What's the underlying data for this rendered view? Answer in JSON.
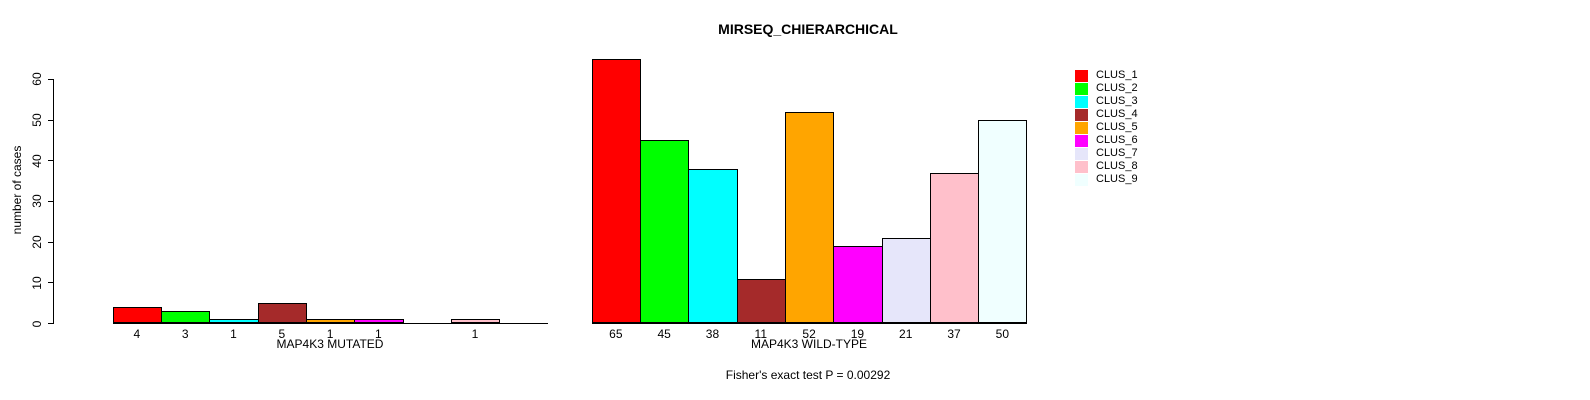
{
  "title": "MIRSEQ_CHIERARCHICAL",
  "footnote": "Fisher's exact test P = 0.00292",
  "ylabel": "number of cases",
  "palette": [
    "#FF0000",
    "#00FF00",
    "#00FFFF",
    "#A52A2A",
    "#FFA500",
    "#FF00FF",
    "#E6E6FA",
    "#FFC0CB",
    "#F0FFFF"
  ],
  "legend": {
    "items": [
      {
        "label": "CLUS_1",
        "color": "#FF0000"
      },
      {
        "label": "CLUS_2",
        "color": "#00FF00"
      },
      {
        "label": "CLUS_3",
        "color": "#00FFFF"
      },
      {
        "label": "CLUS_4",
        "color": "#A52A2A"
      },
      {
        "label": "CLUS_5",
        "color": "#FFA500"
      },
      {
        "label": "CLUS_6",
        "color": "#FF00FF"
      },
      {
        "label": "CLUS_7",
        "color": "#E6E6FA"
      },
      {
        "label": "CLUS_8",
        "color": "#FFC0CB"
      },
      {
        "label": "CLUS_9",
        "color": "#F0FFFF"
      }
    ]
  },
  "chart_data": [
    {
      "type": "bar",
      "title": "MIRSEQ_CHIERARCHICAL",
      "xlabel": "MAP4K3 MUTATED",
      "ylabel": "number of cases",
      "categories": [
        "CLUS_1",
        "CLUS_2",
        "CLUS_3",
        "CLUS_4",
        "CLUS_5",
        "CLUS_6",
        "CLUS_7",
        "CLUS_8",
        "CLUS_9"
      ],
      "values": [
        4,
        3,
        1,
        5,
        1,
        1,
        0,
        1,
        0
      ],
      "bar_labels": [
        "4",
        "3",
        "1",
        "5",
        "1",
        "1",
        "",
        "1",
        ""
      ],
      "ylim": [
        0,
        60
      ],
      "yticks": [
        0,
        10,
        20,
        30,
        40,
        50,
        60
      ],
      "grid": false,
      "legend_position": "right"
    },
    {
      "type": "bar",
      "title": "MIRSEQ_CHIERARCHICAL",
      "xlabel": "MAP4K3 WILD-TYPE",
      "ylabel": "number of cases",
      "categories": [
        "CLUS_1",
        "CLUS_2",
        "CLUS_3",
        "CLUS_4",
        "CLUS_5",
        "CLUS_6",
        "CLUS_7",
        "CLUS_8",
        "CLUS_9"
      ],
      "values": [
        65,
        45,
        38,
        11,
        52,
        19,
        21,
        37,
        50
      ],
      "bar_labels": [
        "65",
        "45",
        "38",
        "11",
        "52",
        "19",
        "21",
        "37",
        "50"
      ],
      "ylim": [
        0,
        60
      ],
      "yticks": [
        0,
        10,
        20,
        30,
        40,
        50,
        60
      ],
      "grid": false,
      "legend_position": "right"
    }
  ]
}
